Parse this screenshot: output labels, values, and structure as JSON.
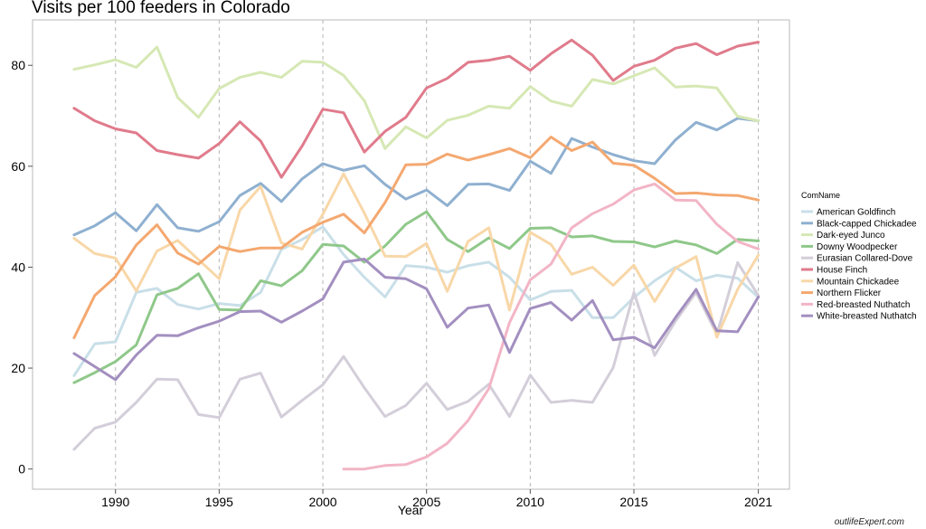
{
  "chart_data": {
    "type": "line",
    "title": "Visits per 100 feeders in Colorado",
    "xlabel": "Year",
    "ylabel": "",
    "xlim": [
      1986,
      2022.5
    ],
    "ylim": [
      -4,
      89
    ],
    "x_ticks": [
      1990,
      1995,
      2000,
      2005,
      2010,
      2015,
      2021
    ],
    "y_ticks": [
      0,
      20,
      40,
      60,
      80
    ],
    "grid": "vertical-dashed",
    "legend_title": "ComName",
    "legend_position": "right",
    "series": [
      {
        "name": "American Goldfinch",
        "color": "#c9dfe8",
        "x": [
          1988,
          1989,
          1990,
          1991,
          1992,
          1993,
          1994,
          1995,
          1996,
          1997,
          1998,
          1999,
          2000,
          2001,
          2002,
          2003,
          2004,
          2005,
          2006,
          2007,
          2008,
          2009,
          2010,
          2011,
          2012,
          2013,
          2014,
          2015,
          2016,
          2017,
          2018,
          2019,
          2020,
          2021
        ],
        "y": [
          18.5,
          24.8,
          25.2,
          35,
          35.8,
          32.6,
          31.7,
          32.8,
          32.4,
          35,
          43.5,
          45.5,
          48,
          42.5,
          38,
          34.1,
          40.3,
          40,
          39,
          40.3,
          41,
          38,
          33.5,
          35.2,
          35.4,
          30,
          30,
          34,
          37.3,
          40,
          37.3,
          38.4,
          37.8,
          34
        ]
      },
      {
        "name": "Black-capped Chickadee",
        "color": "#8fb0d0",
        "x": [
          1988,
          1989,
          1990,
          1991,
          1992,
          1993,
          1994,
          1995,
          1996,
          1997,
          1998,
          1999,
          2000,
          2001,
          2002,
          2003,
          2004,
          2005,
          2006,
          2007,
          2008,
          2009,
          2010,
          2011,
          2012,
          2013,
          2014,
          2015,
          2016,
          2017,
          2018,
          2019,
          2020,
          2021
        ],
        "y": [
          46.4,
          48.2,
          50.8,
          47.2,
          52.4,
          47.8,
          47.1,
          49,
          54.2,
          56.6,
          53,
          57.5,
          60.5,
          59.2,
          60.1,
          56.4,
          53.5,
          55.3,
          52.2,
          56.4,
          56.5,
          55.2,
          61,
          58.6,
          65.5,
          63.8,
          62.3,
          61.1,
          60.5,
          65.2,
          68.7,
          67.2,
          69.5,
          69
        ]
      },
      {
        "name": "Dark-eyed Junco",
        "color": "#d6e8b4",
        "x": [
          1988,
          1989,
          1990,
          1991,
          1992,
          1993,
          1994,
          1995,
          1996,
          1997,
          1998,
          1999,
          2000,
          2001,
          2002,
          2003,
          2004,
          2005,
          2006,
          2007,
          2008,
          2009,
          2010,
          2011,
          2012,
          2013,
          2014,
          2015,
          2016,
          2017,
          2018,
          2019,
          2020,
          2021
        ],
        "y": [
          79.2,
          80.1,
          81.1,
          79.6,
          83.6,
          73.6,
          69.7,
          75.4,
          77.6,
          78.6,
          77.6,
          80.8,
          80.6,
          78,
          73,
          63.5,
          67.8,
          65.6,
          69.1,
          70.1,
          71.9,
          71.5,
          75.8,
          72.9,
          71.9,
          77.2,
          76.3,
          77.9,
          79.5,
          75.7,
          75.9,
          75.5,
          69.9,
          69
        ]
      },
      {
        "name": "Downy Woodpecker",
        "color": "#8fc88a",
        "x": [
          1988,
          1989,
          1990,
          1991,
          1992,
          1993,
          1994,
          1995,
          1996,
          1997,
          1998,
          1999,
          2000,
          2001,
          2002,
          2003,
          2004,
          2005,
          2006,
          2007,
          2008,
          2009,
          2010,
          2011,
          2012,
          2013,
          2014,
          2015,
          2016,
          2017,
          2018,
          2019,
          2020,
          2021
        ],
        "y": [
          17.1,
          19.1,
          21.3,
          24.6,
          34.5,
          35.8,
          38.7,
          31.6,
          31.5,
          37.3,
          36.3,
          39.3,
          44.5,
          44.2,
          41,
          44.2,
          48.5,
          51,
          45.5,
          43.1,
          45.8,
          43.7,
          47.7,
          47.8,
          46,
          46.2,
          45.1,
          45,
          44,
          45.2,
          44.4,
          42.7,
          45.5,
          45.2
        ]
      },
      {
        "name": "Eurasian Collared-Dove",
        "color": "#d3ced9",
        "x": [
          1988,
          1989,
          1990,
          1991,
          1992,
          1993,
          1994,
          1995,
          1996,
          1997,
          1998,
          1999,
          2000,
          2001,
          2002,
          2003,
          2004,
          2005,
          2006,
          2007,
          2008,
          2009,
          2010,
          2011,
          2012,
          2013,
          2014,
          2015,
          2016,
          2017,
          2018,
          2019,
          2020,
          2021
        ],
        "y": [
          3.9,
          8.1,
          9.3,
          13.2,
          17.8,
          17.7,
          10.8,
          10.2,
          17.8,
          19,
          10.3,
          13.6,
          16.7,
          22.3,
          16.1,
          10.4,
          12.6,
          17,
          11.8,
          13.4,
          16.8,
          10.4,
          18.6,
          13.2,
          13.6,
          13.2,
          20.1,
          35,
          22.5,
          29.3,
          35,
          26.7,
          40.9,
          34.4
        ]
      },
      {
        "name": "House Finch",
        "color": "#e07b8c",
        "x": [
          1988,
          1989,
          1990,
          1991,
          1992,
          1993,
          1994,
          1995,
          1996,
          1997,
          1998,
          1999,
          2000,
          2001,
          2002,
          2003,
          2004,
          2005,
          2006,
          2007,
          2008,
          2009,
          2010,
          2011,
          2012,
          2013,
          2014,
          2015,
          2016,
          2017,
          2018,
          2019,
          2020,
          2021
        ],
        "y": [
          71.5,
          69,
          67.4,
          66.6,
          63.1,
          62.3,
          61.6,
          64.5,
          68.8,
          65,
          57.8,
          64,
          71.3,
          70.6,
          62.8,
          66.9,
          69.7,
          75.5,
          77.4,
          80.6,
          81,
          81.8,
          79,
          82.3,
          85,
          82,
          77,
          79.8,
          81,
          83.4,
          84.3,
          82.1,
          83.8,
          84.6
        ]
      },
      {
        "name": "Mountain Chickadee",
        "color": "#f8d7a8",
        "x": [
          1988,
          1989,
          1990,
          1991,
          1992,
          1993,
          1994,
          1995,
          1996,
          1997,
          1998,
          1999,
          2000,
          2001,
          2002,
          2003,
          2004,
          2005,
          2006,
          2007,
          2008,
          2009,
          2010,
          2011,
          2012,
          2013,
          2014,
          2015,
          2016,
          2017,
          2018,
          2019,
          2020,
          2021
        ],
        "y": [
          45.7,
          42.7,
          41.8,
          35.3,
          43.2,
          45.3,
          41.5,
          37.7,
          51.3,
          56,
          44.8,
          43.6,
          50.5,
          58.5,
          50.7,
          42.2,
          42.1,
          44.7,
          35.2,
          45.1,
          47.8,
          31.5,
          46.9,
          44.5,
          38.6,
          40,
          36.4,
          40.4,
          33.2,
          39.8,
          42.1,
          26.1,
          35.6,
          42.4
        ]
      },
      {
        "name": "Northern Flicker",
        "color": "#f4a870",
        "x": [
          1988,
          1989,
          1990,
          1991,
          1992,
          1993,
          1994,
          1995,
          1996,
          1997,
          1998,
          1999,
          2000,
          2001,
          2002,
          2003,
          2004,
          2005,
          2006,
          2007,
          2008,
          2009,
          2010,
          2011,
          2012,
          2013,
          2014,
          2015,
          2016,
          2017,
          2018,
          2019,
          2020,
          2021
        ],
        "y": [
          26,
          34.4,
          38.1,
          44.4,
          48.4,
          42.8,
          40.6,
          44.1,
          43.1,
          43.8,
          43.8,
          46.9,
          48.9,
          50.5,
          46.8,
          52.8,
          60.3,
          60.4,
          62.4,
          61.2,
          62.3,
          63.5,
          61.7,
          65.8,
          63.1,
          64.8,
          60.6,
          60.2,
          57.6,
          54.6,
          54.7,
          54.3,
          54.2,
          53.3
        ]
      },
      {
        "name": "Red-breasted Nuthatch",
        "color": "#f2b5c6",
        "x": [
          2001,
          2002,
          2003,
          2004,
          2005,
          2006,
          2007,
          2008,
          2009,
          2010,
          2011,
          2012,
          2013,
          2014,
          2015,
          2016,
          2017,
          2018,
          2019,
          2020,
          2021
        ],
        "y": [
          0,
          0,
          0.7,
          0.9,
          2.4,
          5.1,
          9.6,
          15.9,
          29,
          37.5,
          40.6,
          47.8,
          50.6,
          52.5,
          55.3,
          56.5,
          53.3,
          53.2,
          48.5,
          45.1,
          43.6
        ]
      },
      {
        "name": "White-breasted Nuthatch",
        "color": "#a38fc0",
        "x": [
          1988,
          1989,
          1990,
          1991,
          1992,
          1993,
          1994,
          1995,
          1996,
          1997,
          1998,
          1999,
          2000,
          2001,
          2002,
          2003,
          2004,
          2005,
          2006,
          2007,
          2008,
          2009,
          2010,
          2011,
          2012,
          2013,
          2014,
          2015,
          2016,
          2017,
          2018,
          2019,
          2020,
          2021
        ],
        "y": [
          22.9,
          20.3,
          17.7,
          22.6,
          26.5,
          26.4,
          28,
          29.3,
          31.2,
          31.3,
          29.1,
          31.3,
          33.7,
          41,
          41.6,
          38,
          37.7,
          35.7,
          28.1,
          31.9,
          32.5,
          23.1,
          31.8,
          33,
          29.5,
          33.4,
          25.6,
          26.1,
          24,
          30,
          35.6,
          27.4,
          27.2,
          34.1
        ]
      }
    ]
  },
  "watermark": "outlifeExpert.com"
}
